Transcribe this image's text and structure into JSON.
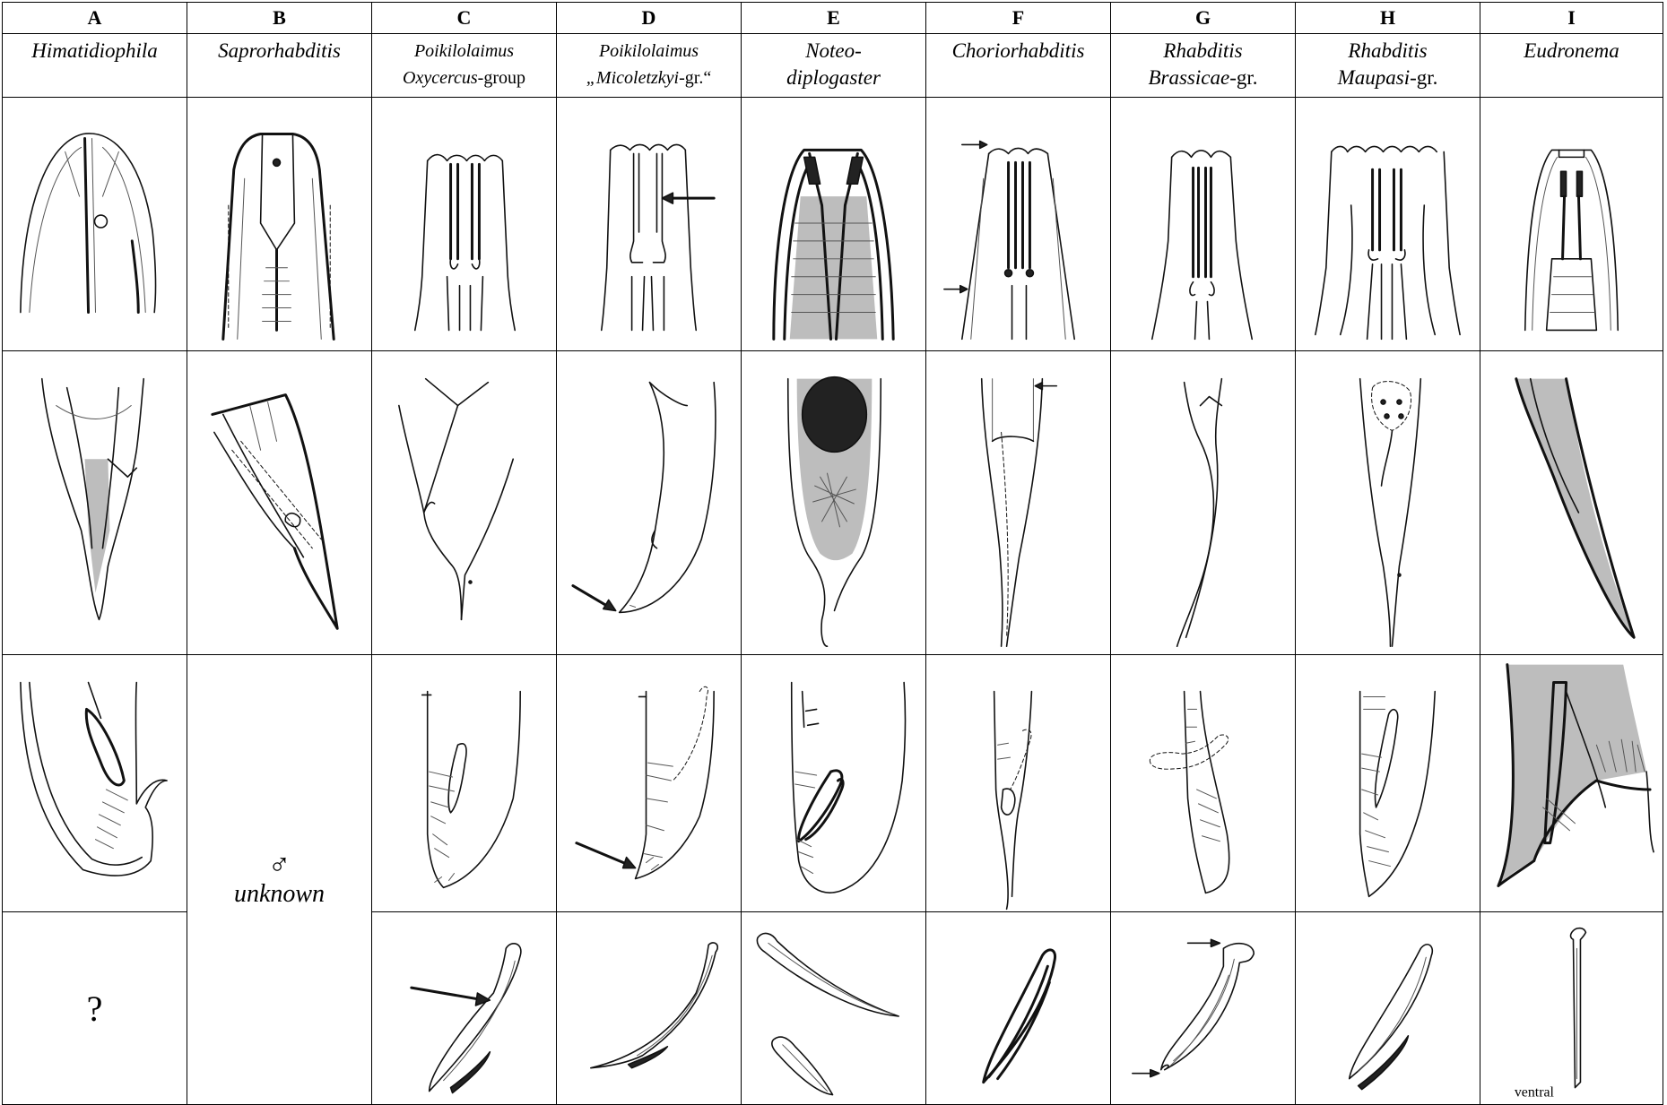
{
  "columns": [
    {
      "letter": "A",
      "name": "Himatidiophila",
      "name2": "",
      "suffix": ""
    },
    {
      "letter": "B",
      "name": "Saprorhabditis",
      "name2": "",
      "suffix": ""
    },
    {
      "letter": "C",
      "name": "Poikilolaimus",
      "name2": "Oxycercus",
      "suffix": "-group"
    },
    {
      "letter": "D",
      "name": "Poikilolaimus",
      "name2": "„Micoletzkyi",
      "suffix": "-gr.“"
    },
    {
      "letter": "E",
      "name": "Noteo-",
      "name2": "diplogaster",
      "suffix": ""
    },
    {
      "letter": "F",
      "name": "Choriorhabditis",
      "name2": "",
      "suffix": ""
    },
    {
      "letter": "G",
      "name": "Rhabditis",
      "name2": "Brassicae",
      "suffix": "-gr."
    },
    {
      "letter": "H",
      "name": "Rhabditis",
      "name2": "Maupasi",
      "suffix": "-gr."
    },
    {
      "letter": "I",
      "name": "Eudronema",
      "name2": "",
      "suffix": ""
    }
  ],
  "cells": {
    "spicule_a": "?",
    "male_symbol": "♂",
    "male_unknown": "unknown",
    "ventral_label": "ventral"
  },
  "row_content": [
    "anterior end (head)",
    "female tail",
    "male tail",
    "spicules"
  ]
}
